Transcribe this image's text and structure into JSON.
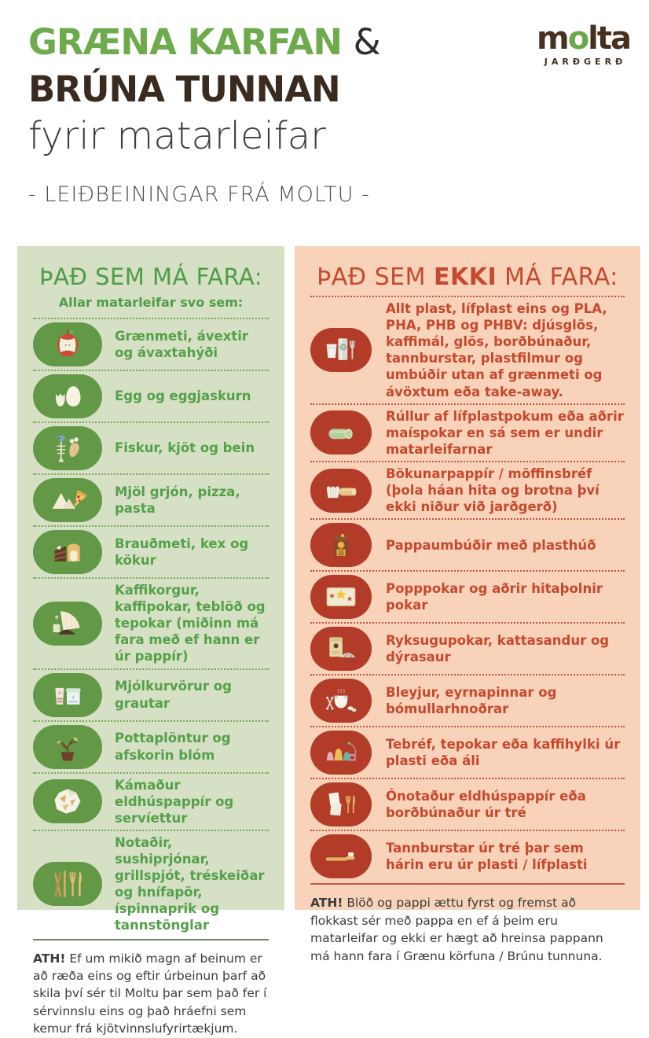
{
  "header": {
    "title_line1": "GRÆNA KARFAN",
    "title_ampersand": "&",
    "title_line2": "BRÚNA TUNNAN",
    "title_line3": "fyrir matarleifar",
    "subtitle": "- LEIÐBEININGAR FRÁ MOLTU -"
  },
  "logo": {
    "wordmark": "molta",
    "tagline": "JARÐGERÐ"
  },
  "colors": {
    "title_green": "#6dab4c",
    "title_brown": "#3a2b20",
    "left_panel_bg": "#d5e0c4",
    "left_accent": "#4f9c49",
    "left_oval": "#639946",
    "right_panel_bg": "#f8d3ba",
    "right_accent": "#c5492e",
    "right_oval": "#b23c28"
  },
  "left_panel": {
    "heading": "ÞAÐ SEM MÁ FARA:",
    "subheading": "Allar matarleifar svo sem:",
    "items": [
      {
        "icon": "apple-core",
        "text": "Grænmeti, ávextir og ávaxtahýði"
      },
      {
        "icon": "eggs",
        "text": "Egg og eggjaskurn"
      },
      {
        "icon": "fish-and-bone",
        "text": "Fiskur, kjöt og bein"
      },
      {
        "icon": "flour-and-pizza",
        "text": "Mjöl grjón, pizza, pasta"
      },
      {
        "icon": "cake-and-bread",
        "text": "Brauðmeti, kex og kökur"
      },
      {
        "icon": "coffee-filter",
        "text": "Kaffikorgur, kaffipokar, teblöð og tepokar (miðinn má fara með ef hann er úr pappír)"
      },
      {
        "icon": "dairy",
        "text": "Mjólkurvörur og grautar"
      },
      {
        "icon": "potted-plant",
        "text": "Pottaplöntur og afskorin blóm"
      },
      {
        "icon": "crumpled-paper",
        "text": "Kámaður eldhúspappír og servíettur"
      },
      {
        "icon": "wooden-utensils",
        "text": "Notaðir, sushiprjónar, grillspjót, tréskeiðar og hnífapör, íspinnaprik og tannstönglar"
      }
    ],
    "note_label": "ATH!",
    "note_text": " Ef um mikið magn af beinum er að ræða eins og eftir úrbeinun þarf að skila því sér til Moltu þar sem það fer í sérvinnslu eins og það hráefni sem kemur frá kjötvinnslufyrirtækjum."
  },
  "right_panel": {
    "heading_part1": "ÞAÐ SEM ",
    "heading_emphasis": "EKKI",
    "heading_part2": " MÁ FARA:",
    "items": [
      {
        "icon": "plastic-items",
        "bold": "Allt plast",
        "text": ", lífplast eins og PLA, PHA, PHB og PHBV: djúsglös, kaffimál, glös, borðbúnaður, tannburstar, plastfilmur og umbúðir utan af grænmeti og ávöxtum eða take-away."
      },
      {
        "icon": "bag-roll",
        "text": "Rúllur af lífplastpokum eða aðrir maíspokar en sá sem er undir matarleifarnar"
      },
      {
        "icon": "baking-paper",
        "text": "Bökunarpappír / möffinsbréf (þola háan hita og brotna því ekki niður við jarðgerð)"
      },
      {
        "icon": "carton",
        "text": "Pappaumbúðir með plasthúð"
      },
      {
        "icon": "popcorn-bag",
        "text": "Popppokar og aðrir hitaþolnir pokar"
      },
      {
        "icon": "vacuum-bag",
        "text": "Ryksugupokar, kattasandur og dýrasaur"
      },
      {
        "icon": "diaper",
        "text": "Bleyjur, eyrnapinnar og bómullarhnoðrar"
      },
      {
        "icon": "coffee-capsules",
        "text": "Tebréf, tepokar eða kaffihylki úr plasti eða áli"
      },
      {
        "icon": "unused-paper",
        "bold": "Ónotaður",
        "text": " eldhúspappír eða borðbúnaður úr tré"
      },
      {
        "icon": "toothbrush",
        "text": "Tannburstar úr tré þar sem hárin eru úr plasti / lífplasti"
      }
    ],
    "note_label": "ATH!",
    "note_text": " Blöð og pappi ættu fyrst og fremst að flokkast sér með pappa en ef á þeim eru matarleifar og ekki er hægt að hreinsa pappann má hann fara í Grænu körfuna / Brúnu tunnuna."
  }
}
